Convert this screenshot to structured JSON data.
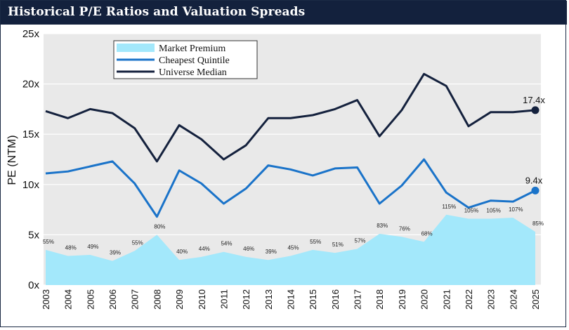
{
  "title": "Historical P/E Ratios and Valuation Spreads",
  "chart_data": {
    "type": "line",
    "title": "Historical P/E Ratios and Valuation Spreads",
    "xlabel": "",
    "ylabel": "PE (NTM)",
    "ylim": [
      0,
      25
    ],
    "yticks": [
      "0x",
      "5x",
      "10x",
      "15x",
      "20x",
      "25x"
    ],
    "ytick_values": [
      0,
      5,
      10,
      15,
      20,
      25
    ],
    "grid": true,
    "legend_position": "top-left",
    "categories": [
      "2003",
      "2004",
      "2005",
      "2006",
      "2007",
      "2008",
      "2009",
      "2010",
      "2011",
      "2012",
      "2013",
      "2014",
      "2015",
      "2016",
      "2017",
      "2018",
      "2019",
      "2020",
      "2021",
      "2022",
      "2023",
      "2024",
      "2025"
    ],
    "series": [
      {
        "name": "Market Premium",
        "kind": "area",
        "color": "#a3e8fb",
        "values": [
          3.5,
          2.9,
          3.0,
          2.4,
          3.4,
          5.0,
          2.5,
          2.8,
          3.3,
          2.8,
          2.5,
          2.9,
          3.5,
          3.2,
          3.6,
          5.1,
          4.8,
          4.3,
          7.0,
          6.6,
          6.6,
          6.7,
          5.3
        ],
        "labels": [
          "55%",
          "48%",
          "49%",
          "39%",
          "55%",
          "80%",
          "40%",
          "44%",
          "54%",
          "46%",
          "39%",
          "45%",
          "55%",
          "51%",
          "57%",
          "83%",
          "76%",
          "68%",
          "115%",
          "105%",
          "105%",
          "107%",
          "85%"
        ]
      },
      {
        "name": "Cheapest Quintile",
        "kind": "line",
        "color": "#1a73c9",
        "values": [
          11.1,
          11.3,
          11.8,
          12.3,
          10.1,
          6.8,
          11.4,
          10.1,
          8.1,
          9.6,
          11.9,
          11.5,
          10.9,
          11.6,
          11.7,
          8.1,
          9.9,
          12.5,
          9.2,
          7.7,
          8.4,
          8.3,
          9.4
        ],
        "end_label": "9.4x"
      },
      {
        "name": "Universe Median",
        "kind": "line",
        "color": "#14213d",
        "values": [
          17.3,
          16.6,
          17.5,
          17.1,
          15.6,
          12.3,
          15.9,
          14.5,
          12.5,
          13.9,
          16.6,
          16.6,
          16.9,
          17.5,
          18.4,
          14.8,
          17.4,
          21.0,
          19.8,
          15.8,
          17.2,
          17.2,
          17.4
        ],
        "end_label": "17.4x"
      }
    ]
  }
}
